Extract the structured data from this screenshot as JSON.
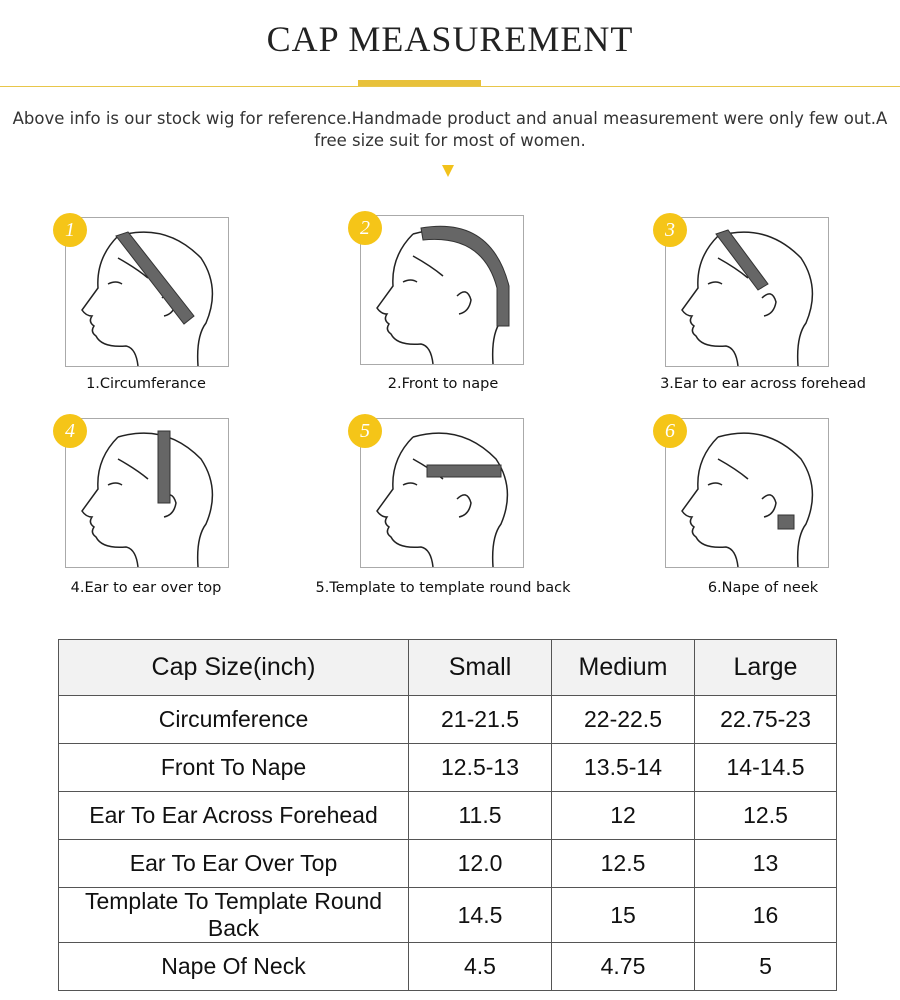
{
  "title": "CAP  MEASUREMENT",
  "intro": "Above info is our stock wig for reference.Handmade product and anual measurement were only few out.A free size suit for most of women.",
  "colors": {
    "accent": "#f5c518",
    "rule": "#e8c64a",
    "band": "#666666"
  },
  "steps": [
    {
      "badge": "1",
      "label": "1.Circumferance"
    },
    {
      "badge": "2",
      "label": "2.Front to nape"
    },
    {
      "badge": "3",
      "label": "3.Ear to ear across forehead"
    },
    {
      "badge": "4",
      "label": "4.Ear to ear over top"
    },
    {
      "badge": "5",
      "label": "5.Template to template round back"
    },
    {
      "badge": "6",
      "label": "6.Nape of neek"
    }
  ],
  "table": {
    "headers": [
      "Cap Size(inch)",
      "Small",
      "Medium",
      "Large"
    ],
    "rows": [
      [
        "Circumference",
        "21-21.5",
        "22-22.5",
        "22.75-23"
      ],
      [
        "Front To Nape",
        "12.5-13",
        "13.5-14",
        "14-14.5"
      ],
      [
        "Ear To Ear Across Forehead",
        "11.5",
        "12",
        "12.5"
      ],
      [
        "Ear To Ear Over Top",
        "12.0",
        "12.5",
        "13"
      ],
      [
        "Template To Template Round Back",
        "14.5",
        "15",
        "16"
      ],
      [
        "Nape Of Neck",
        "4.5",
        "4.75",
        "5"
      ]
    ]
  }
}
